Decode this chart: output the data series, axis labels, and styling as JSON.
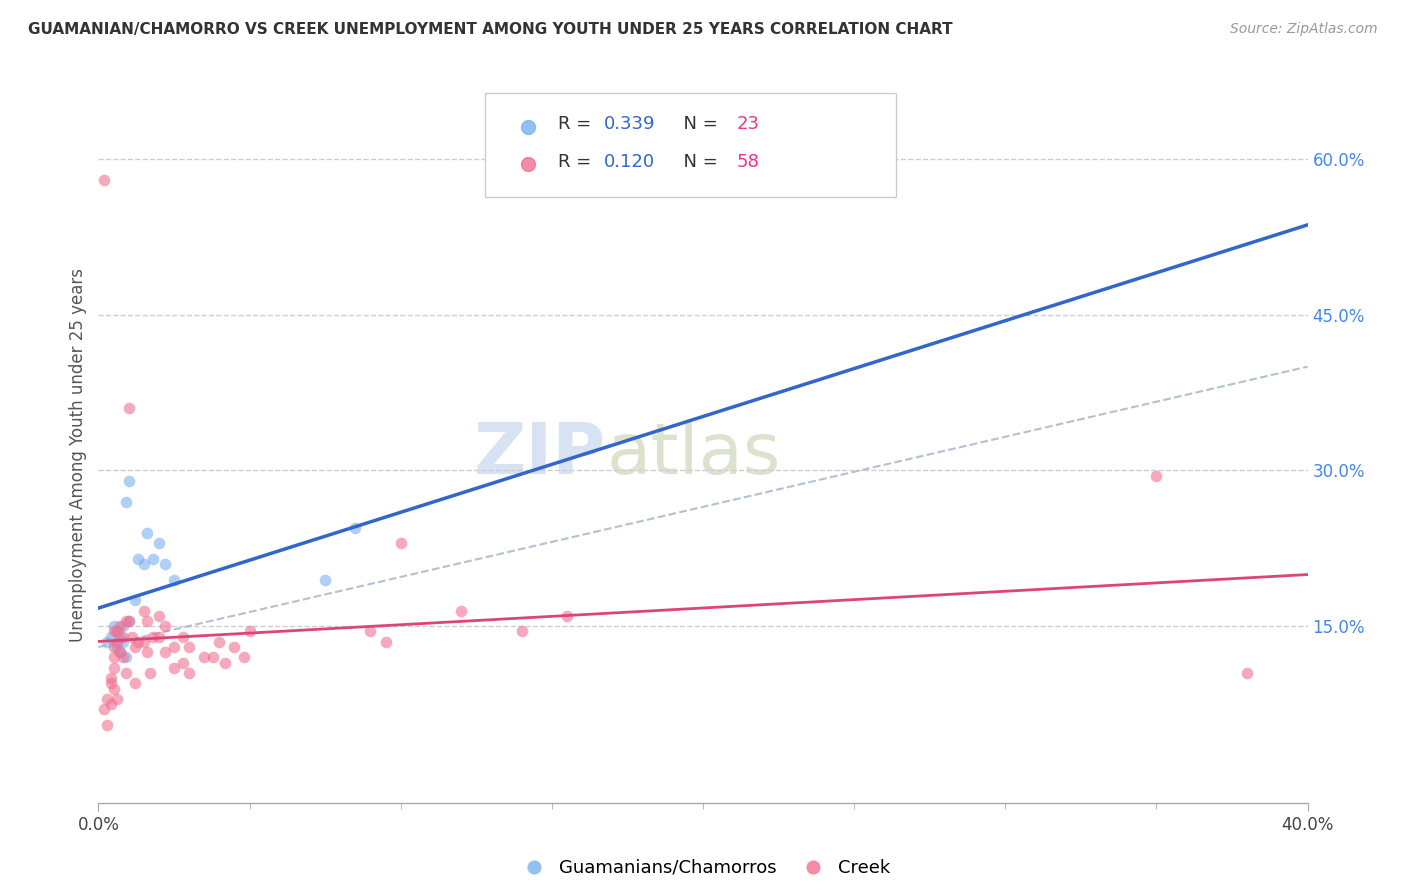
{
  "title": "GUAMANIAN/CHAMORRO VS CREEK UNEMPLOYMENT AMONG YOUTH UNDER 25 YEARS CORRELATION CHART",
  "source": "Source: ZipAtlas.com",
  "ylabel": "Unemployment Among Youth under 25 years",
  "right_yticklabels": [
    "15.0%",
    "30.0%",
    "45.0%",
    "60.0%"
  ],
  "right_yticks": [
    0.15,
    0.3,
    0.45,
    0.6
  ],
  "guamanian_x": [
    0.003,
    0.004,
    0.005,
    0.006,
    0.006,
    0.007,
    0.007,
    0.008,
    0.008,
    0.009,
    0.009,
    0.01,
    0.01,
    0.012,
    0.013,
    0.015,
    0.016,
    0.018,
    0.02,
    0.022,
    0.025,
    0.075,
    0.085
  ],
  "guamanian_y": [
    0.135,
    0.14,
    0.15,
    0.13,
    0.145,
    0.125,
    0.14,
    0.135,
    0.15,
    0.12,
    0.27,
    0.155,
    0.29,
    0.175,
    0.215,
    0.21,
    0.24,
    0.215,
    0.23,
    0.21,
    0.195,
    0.195,
    0.245
  ],
  "creek_x": [
    0.002,
    0.002,
    0.003,
    0.003,
    0.004,
    0.004,
    0.004,
    0.005,
    0.005,
    0.005,
    0.005,
    0.005,
    0.006,
    0.006,
    0.006,
    0.007,
    0.007,
    0.008,
    0.008,
    0.009,
    0.009,
    0.01,
    0.01,
    0.011,
    0.012,
    0.012,
    0.013,
    0.015,
    0.015,
    0.016,
    0.016,
    0.017,
    0.018,
    0.02,
    0.02,
    0.022,
    0.022,
    0.025,
    0.025,
    0.028,
    0.028,
    0.03,
    0.03,
    0.035,
    0.038,
    0.04,
    0.042,
    0.045,
    0.048,
    0.05,
    0.09,
    0.095,
    0.1,
    0.12,
    0.14,
    0.155,
    0.35,
    0.38
  ],
  "creek_y": [
    0.58,
    0.07,
    0.08,
    0.055,
    0.1,
    0.095,
    0.075,
    0.145,
    0.13,
    0.12,
    0.11,
    0.09,
    0.145,
    0.135,
    0.08,
    0.15,
    0.125,
    0.14,
    0.12,
    0.155,
    0.105,
    0.36,
    0.155,
    0.14,
    0.13,
    0.095,
    0.135,
    0.165,
    0.135,
    0.155,
    0.125,
    0.105,
    0.14,
    0.16,
    0.14,
    0.15,
    0.125,
    0.13,
    0.11,
    0.14,
    0.115,
    0.13,
    0.105,
    0.12,
    0.12,
    0.135,
    0.115,
    0.13,
    0.12,
    0.145,
    0.145,
    0.135,
    0.23,
    0.165,
    0.145,
    0.16,
    0.295,
    0.105
  ],
  "xlim": [
    0.0,
    0.4
  ],
  "ylim": [
    -0.02,
    0.65
  ],
  "blue_dot_color": "#7aaff0",
  "pink_dot_color": "#f07090",
  "blue_line_color": "#3366cc",
  "pink_line_color": "#dd4477",
  "dashed_line_color": "#aabbcc",
  "background_color": "#ffffff",
  "grid_color": "#ccccdd",
  "dot_alpha": 0.6,
  "dot_size": 70,
  "watermark_zip_color": "#b8cce8",
  "watermark_atlas_color": "#c8d8b0"
}
